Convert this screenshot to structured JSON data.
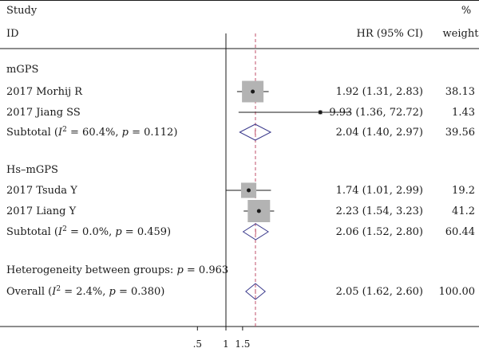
{
  "chart_data": {
    "type": "forest",
    "header": {
      "study_top": "Study",
      "study_bottom": "ID",
      "hr": "HR (95% CI)",
      "weight_top": "%",
      "weight_bottom": "weight"
    },
    "rows": [
      {
        "kind": "group",
        "label": "mGPS"
      },
      {
        "kind": "study",
        "label": "2017 Morhij R",
        "hr": 1.92,
        "lo": 1.31,
        "hi": 2.83,
        "weight": 38.13,
        "hr_text": "1.92 (1.31, 2.83)",
        "weight_text": "38.13"
      },
      {
        "kind": "study",
        "label": "2017 Jiang SS",
        "hr": 9.93,
        "lo": 1.36,
        "hi": 72.72,
        "weight": 1.43,
        "hr_text": "9.93 (1.36, 72.72)",
        "weight_text": "1.43"
      },
      {
        "kind": "subtotal",
        "label": "Subtotal",
        "stats": {
          "i2": "60.4%",
          "p": "0.112"
        },
        "hr": 2.04,
        "lo": 1.4,
        "hi": 2.97,
        "hr_text": "2.04 (1.40, 2.97)",
        "weight_text": "39.56"
      },
      {
        "kind": "spacer"
      },
      {
        "kind": "group",
        "label": "Hs–mGPS"
      },
      {
        "kind": "study",
        "label": "2017 Tsuda Y",
        "hr": 1.74,
        "lo": 1.01,
        "hi": 2.99,
        "weight": 19.2,
        "hr_text": "1.74 (1.01, 2.99)",
        "weight_text": "19.2"
      },
      {
        "kind": "study",
        "label": "2017 Liang Y",
        "hr": 2.23,
        "lo": 1.54,
        "hi": 3.23,
        "weight": 41.2,
        "hr_text": "2.23 (1.54, 3.23)",
        "weight_text": "41.2"
      },
      {
        "kind": "subtotal",
        "label": "Subtotal",
        "stats": {
          "i2": "0.0%",
          "p": "0.459"
        },
        "hr": 2.06,
        "lo": 1.52,
        "hi": 2.8,
        "hr_text": "2.06 (1.52, 2.80)",
        "weight_text": "60.44"
      },
      {
        "kind": "spacer"
      },
      {
        "kind": "note",
        "label": "Heterogeneity between groups: ",
        "p_label": "p",
        "p_value": "0.963"
      },
      {
        "kind": "overall",
        "label": "Overall",
        "stats": {
          "i2": "2.4%",
          "p": "0.380"
        },
        "hr": 2.05,
        "lo": 1.62,
        "hi": 2.6,
        "hr_text": "2.05 (1.62, 2.60)",
        "weight_text": "100.00"
      }
    ],
    "x_ticks": [
      ".5",
      "1",
      "1.5"
    ],
    "null_line": 1,
    "pooled_line": 2.05,
    "colors": {
      "box": "#b3b3b3",
      "diamond": "#3b3a8c",
      "pooled_line": "#c0506a",
      "ink": "#1a1a1a"
    }
  }
}
